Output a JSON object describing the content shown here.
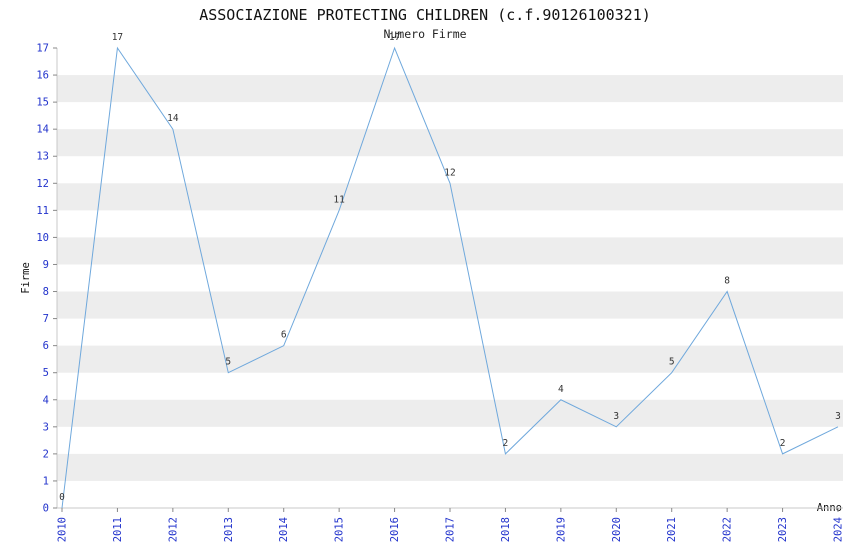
{
  "chart_data": {
    "type": "line",
    "title": "ASSOCIAZIONE PROTECTING CHILDREN (c.f.90126100321)",
    "subtitle": "Numero Firme",
    "xlabel": "Anno",
    "ylabel": "Firme",
    "categories": [
      "2010",
      "2011",
      "2012",
      "2013",
      "2014",
      "2015",
      "2016",
      "2017",
      "2018",
      "2019",
      "2020",
      "2021",
      "2022",
      "2023",
      "2024"
    ],
    "values": [
      0,
      17,
      14,
      5,
      6,
      11,
      17,
      12,
      2,
      4,
      3,
      5,
      8,
      2,
      3
    ],
    "ylim": [
      0,
      17
    ],
    "y_tick_step": 1,
    "grid": "horizontal-alternating-bands",
    "legend": "none",
    "colors": {
      "line": "#6fa8dc",
      "tick_labels": "#2233cc",
      "point_labels": "#333333",
      "band": "#ededed",
      "spine": "#c8c8c8",
      "tick_mark": "#888888",
      "background": "#ffffff"
    }
  }
}
